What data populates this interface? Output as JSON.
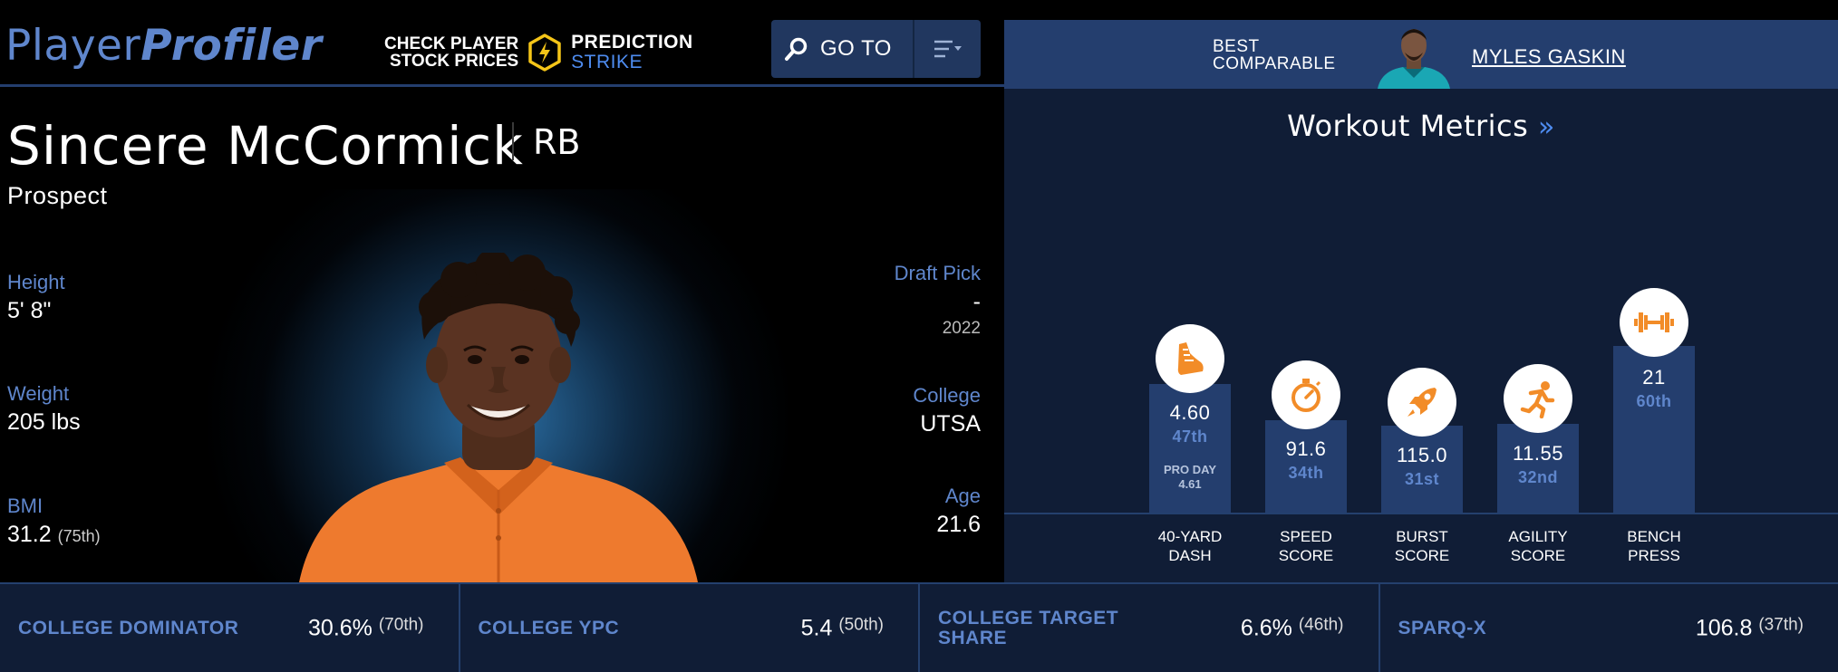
{
  "header": {
    "logo_part1": "Player",
    "logo_part2": "Profiler",
    "promo_line1": "CHECK PLAYER",
    "promo_line2": "STOCK PRICES",
    "promo_brand1": "PREDICTION",
    "promo_brand2": "STRIKE",
    "goto_label": "GO TO"
  },
  "comparable": {
    "label_line1": "BEST",
    "label_line2": "COMPARABLE",
    "name": "MYLES GASKIN"
  },
  "player": {
    "name": "Sincere McCormick",
    "position": "RB",
    "status": "Prospect",
    "height_label": "Height",
    "height_value": "5' 8\"",
    "weight_label": "Weight",
    "weight_value": "205 lbs",
    "bmi_label": "BMI",
    "bmi_value": "31.2",
    "bmi_pct": "(75th)",
    "draft_label": "Draft Pick",
    "draft_value": "-",
    "draft_year": "2022",
    "college_label": "College",
    "college_value": "UTSA",
    "age_label": "Age",
    "age_value": "21.6"
  },
  "workout": {
    "title": "Workout Metrics",
    "title_chevron": "»",
    "metrics": [
      {
        "label_line1": "40-YARD",
        "label_line2": "DASH",
        "value": "4.60",
        "percentile": "47th",
        "pro_day_label": "PRO DAY",
        "pro_day_value": "4.61",
        "icon": "shoe-icon",
        "level": 47
      },
      {
        "label_line1": "SPEED",
        "label_line2": "SCORE",
        "value": "91.6",
        "percentile": "34th",
        "icon": "stopwatch-icon",
        "level": 34
      },
      {
        "label_line1": "BURST",
        "label_line2": "SCORE",
        "value": "115.0",
        "percentile": "31st",
        "icon": "rocket-icon",
        "level": 31
      },
      {
        "label_line1": "AGILITY",
        "label_line2": "SCORE",
        "value": "11.55",
        "percentile": "32nd",
        "icon": "runner-icon",
        "level": 32
      },
      {
        "label_line1": "BENCH",
        "label_line2": "PRESS",
        "value": "21",
        "percentile": "60th",
        "icon": "dumbbell-icon",
        "level": 60
      }
    ]
  },
  "bottom_stats": [
    {
      "label": "COLLEGE DOMINATOR",
      "value": "30.6%",
      "pct": "(70th)"
    },
    {
      "label": "COLLEGE YPC",
      "value": "5.4",
      "pct": "(50th)"
    },
    {
      "label": "COLLEGE TARGET SHARE",
      "value": "6.6%",
      "pct": "(46th)"
    },
    {
      "label": "SPARQ-X",
      "value": "106.8",
      "pct": "(37th)"
    }
  ],
  "colors": {
    "accent_blue": "#5f86cc",
    "bright_blue": "#4e8cf0",
    "panel_blue": "#243e6e",
    "panel_dark": "#101d36",
    "icon_orange": "#f28c28"
  }
}
